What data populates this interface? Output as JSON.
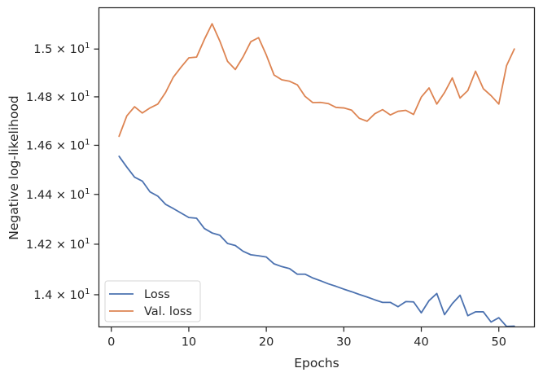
{
  "chart_data": {
    "type": "line",
    "xlabel": "Epochs",
    "ylabel": "Negative log-likelihood",
    "xlim": [
      -1.6,
      54.6
    ],
    "ylim": [
      13.874,
      15.175
    ],
    "y_scale": "log",
    "grid": false,
    "legend_position": "lower-left",
    "x_ticks": [
      0,
      10,
      20,
      30,
      40,
      50
    ],
    "x_tick_labels": [
      "0",
      "10",
      "20",
      "30",
      "40",
      "50"
    ],
    "y_ticks": [
      14.0,
      14.2,
      14.4,
      14.6,
      14.8,
      15.0
    ],
    "y_tick_labels": [
      {
        "mantissa": "1.4",
        "base": "10",
        "exp": "1"
      },
      {
        "mantissa": "1.42",
        "base": "10",
        "exp": "1"
      },
      {
        "mantissa": "1.44",
        "base": "10",
        "exp": "1"
      },
      {
        "mantissa": "1.46",
        "base": "10",
        "exp": "1"
      },
      {
        "mantissa": "1.48",
        "base": "10",
        "exp": "1"
      },
      {
        "mantissa": "1.5",
        "base": "10",
        "exp": "1"
      }
    ],
    "x": [
      1,
      2,
      3,
      4,
      5,
      6,
      7,
      8,
      9,
      10,
      11,
      12,
      13,
      14,
      15,
      16,
      17,
      18,
      19,
      20,
      21,
      22,
      23,
      24,
      25,
      26,
      27,
      28,
      29,
      30,
      31,
      32,
      33,
      34,
      35,
      36,
      37,
      38,
      39,
      40,
      41,
      42,
      43,
      44,
      45,
      46,
      47,
      48,
      49,
      50,
      51,
      52
    ],
    "series": [
      {
        "name": "Loss",
        "color": "#4c72b0",
        "values": [
          14.555,
          14.511,
          14.47,
          14.454,
          14.41,
          14.393,
          14.36,
          14.343,
          14.325,
          14.307,
          14.304,
          14.263,
          14.245,
          14.236,
          14.203,
          14.195,
          14.172,
          14.158,
          14.154,
          14.149,
          14.122,
          14.111,
          14.103,
          14.081,
          14.081,
          14.066,
          14.055,
          14.043,
          14.033,
          14.022,
          14.012,
          14.001,
          13.991,
          13.98,
          13.97,
          13.97,
          13.953,
          13.973,
          13.972,
          13.929,
          13.977,
          14.005,
          13.922,
          13.965,
          13.998,
          13.918,
          13.933,
          13.933,
          13.893,
          13.91,
          13.876,
          13.877
        ]
      },
      {
        "name": "Val. loss",
        "color": "#dd8452",
        "values": [
          14.637,
          14.721,
          14.759,
          14.733,
          14.754,
          14.77,
          14.818,
          14.882,
          14.924,
          14.963,
          14.966,
          15.04,
          15.107,
          15.034,
          14.948,
          14.914,
          14.967,
          15.031,
          15.048,
          14.975,
          14.891,
          14.871,
          14.865,
          14.85,
          14.802,
          14.776,
          14.777,
          14.772,
          14.756,
          14.754,
          14.745,
          14.711,
          14.699,
          14.73,
          14.747,
          14.725,
          14.74,
          14.744,
          14.727,
          14.799,
          14.837,
          14.77,
          14.818,
          14.879,
          14.795,
          14.826,
          14.907,
          14.834,
          14.805,
          14.77,
          14.93,
          15.0
        ]
      }
    ]
  }
}
